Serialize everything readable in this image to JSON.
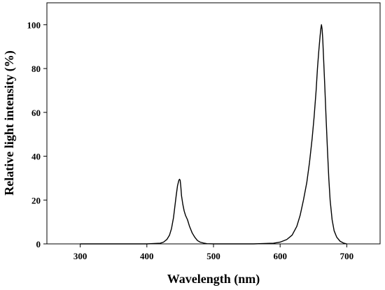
{
  "chart_data": {
    "type": "line",
    "title": "",
    "xlabel": "Wavelength (nm)",
    "ylabel": "Relative light intensity (%)",
    "xlim": [
      250,
      750
    ],
    "ylim": [
      0,
      110
    ],
    "xticks": [
      300,
      400,
      500,
      600,
      700
    ],
    "yticks": [
      0,
      20,
      40,
      60,
      80,
      100
    ],
    "xtick_labels": [
      "300",
      "400",
      "500",
      "600",
      "700"
    ],
    "ytick_labels": [
      "0",
      "20",
      "40",
      "60",
      "80",
      "100"
    ],
    "grid": false,
    "legend": "none",
    "line_color": "#000000",
    "series": [
      {
        "x": [
          300,
          400,
          420,
          425,
          430,
          434,
          437,
          440,
          442,
          444,
          446,
          448,
          449,
          450,
          451,
          452,
          454,
          456,
          458,
          461,
          464,
          468,
          472,
          476,
          480,
          485,
          490,
          500,
          560,
          590,
          600,
          610,
          618,
          625,
          630,
          635,
          640,
          644,
          648,
          651,
          654,
          656,
          658,
          660,
          661,
          662,
          663,
          664,
          665,
          667,
          669,
          671,
          673,
          675,
          678,
          681,
          685,
          690,
          695,
          700
        ],
        "y": [
          0,
          0,
          0.3,
          0.8,
          2,
          4,
          7,
          12,
          17,
          22,
          26.5,
          29,
          29.5,
          29,
          26,
          22,
          18,
          15,
          13,
          11,
          8,
          5,
          3,
          1.5,
          0.8,
          0.4,
          0.1,
          0,
          0,
          0.3,
          0.8,
          2,
          4,
          8,
          13,
          20,
          28,
          37,
          48,
          58,
          70,
          80,
          88,
          95,
          98,
          100,
          98,
          93,
          86,
          72,
          57,
          43,
          30,
          20,
          11,
          6,
          3,
          1.2,
          0.4,
          0
        ]
      }
    ]
  }
}
